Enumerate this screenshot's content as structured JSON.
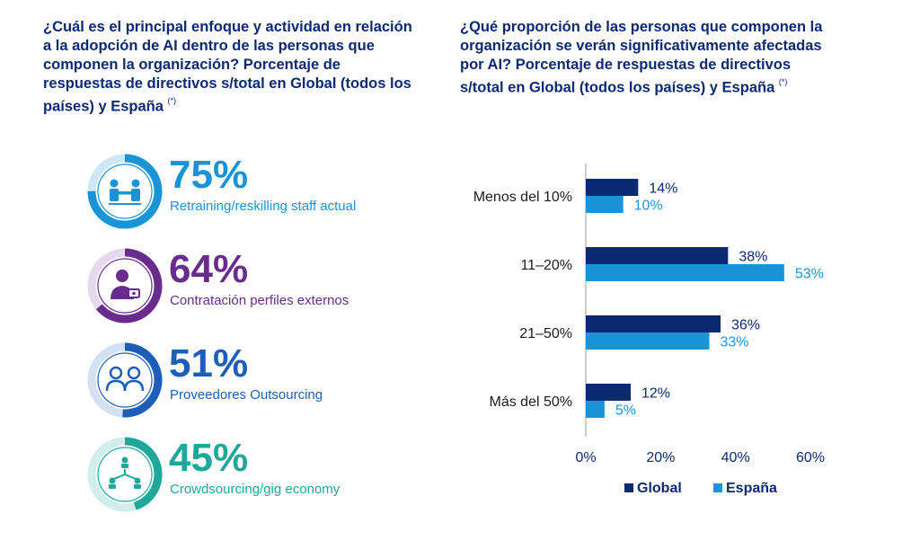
{
  "left": {
    "title": "¿Cuál es el principal enfoque y actividad en relación a la adopción de AI dentro de las personas que componen la organización? Porcentaje de respuestas de directivos s/total en Global (todos los países) y España",
    "title_note": "(*)",
    "stats": [
      {
        "value_text": "75%",
        "value": 75,
        "label": "Retraining/reskilling staff actual",
        "color": "#1a94d6",
        "icon": "handshake-people-icon"
      },
      {
        "value_text": "64%",
        "value": 64,
        "label": "Contratación perfiles externos",
        "color": "#6a2c8c",
        "icon": "person-hire-icon"
      },
      {
        "value_text": "51%",
        "value": 51,
        "label": "Proveedores Outsourcing",
        "color": "#1d5fb8",
        "icon": "two-people-icon"
      },
      {
        "value_text": "45%",
        "value": 45,
        "label": "Crowdsourcing/gig economy",
        "color": "#1fa89a",
        "icon": "network-people-icon"
      }
    ]
  },
  "right": {
    "title": "¿Qué proporción de las personas que componen la organización se verán significativamente afectadas por AI? Porcentaje de respuestas de directivos s/total en Global (todos los países) y España",
    "title_note": "(*)"
  },
  "chart_data": {
    "type": "bar",
    "orientation": "horizontal",
    "categories": [
      "Menos del 10%",
      "11–20%",
      "21–50%",
      "Más del 50%"
    ],
    "series": [
      {
        "name": "Global",
        "values": [
          14,
          38,
          36,
          12
        ],
        "labels": [
          "14%",
          "38%",
          "36%",
          "12%"
        ],
        "color": "#0b2a73"
      },
      {
        "name": "España",
        "values": [
          10,
          53,
          33,
          5
        ],
        "labels": [
          "10%",
          "53%",
          "33%",
          "5%"
        ],
        "color": "#1a94d6"
      }
    ],
    "xlim": [
      0,
      60
    ],
    "xticks": [
      "0%",
      "20%",
      "40%",
      "60%"
    ],
    "grid": false,
    "legend": "bottom"
  }
}
